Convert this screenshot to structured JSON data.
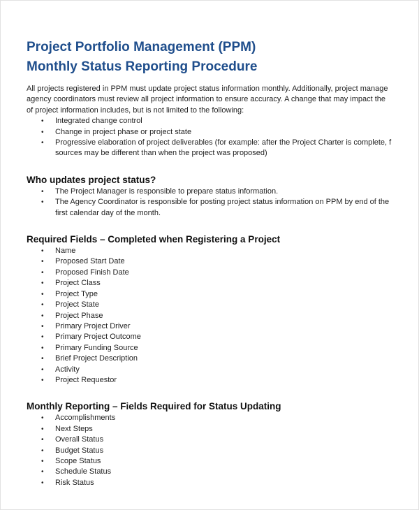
{
  "title": [
    "Project Portfolio Management (PPM)",
    "Monthly Status Reporting Procedure"
  ],
  "intro": {
    "lines": [
      "All projects registered in PPM must update project status information monthly. Additionally, project manage",
      "agency coordinators must review all project information to ensure accuracy. A change that may impact the",
      "of project information includes, but is not limited to the following:"
    ],
    "items": [
      [
        "Integrated change control"
      ],
      [
        "Change in project phase or project state"
      ],
      [
        "Progressive elaboration of project deliverables (for example: after the Project Charter is complete, f",
        "sources may be different than when the project was proposed)"
      ]
    ]
  },
  "sections": [
    {
      "heading": "Who updates project status?",
      "items": [
        [
          "The Project Manager is responsible to prepare status information."
        ],
        [
          "The Agency Coordinator is responsible for posting project status information on PPM by end of the",
          "first calendar day of the month."
        ]
      ]
    },
    {
      "heading": "Required Fields – Completed when Registering a Project",
      "items": [
        [
          "Name"
        ],
        [
          "Proposed Start Date"
        ],
        [
          "Proposed Finish Date"
        ],
        [
          "Project Class"
        ],
        [
          "Project Type"
        ],
        [
          "Project State"
        ],
        [
          "Project Phase"
        ],
        [
          "Primary Project Driver"
        ],
        [
          "Primary Project Outcome"
        ],
        [
          "Primary Funding Source"
        ],
        [
          "Brief Project Description"
        ],
        [
          "Activity"
        ],
        [
          "Project Requestor"
        ]
      ]
    },
    {
      "heading": "Monthly Reporting – Fields Required for Status Updating",
      "items": [
        [
          "Accomplishments"
        ],
        [
          "Next Steps"
        ],
        [
          "Overall Status"
        ],
        [
          "Budget Status"
        ],
        [
          "Scope Status"
        ],
        [
          "Schedule Status"
        ],
        [
          "Risk Status"
        ]
      ]
    }
  ]
}
